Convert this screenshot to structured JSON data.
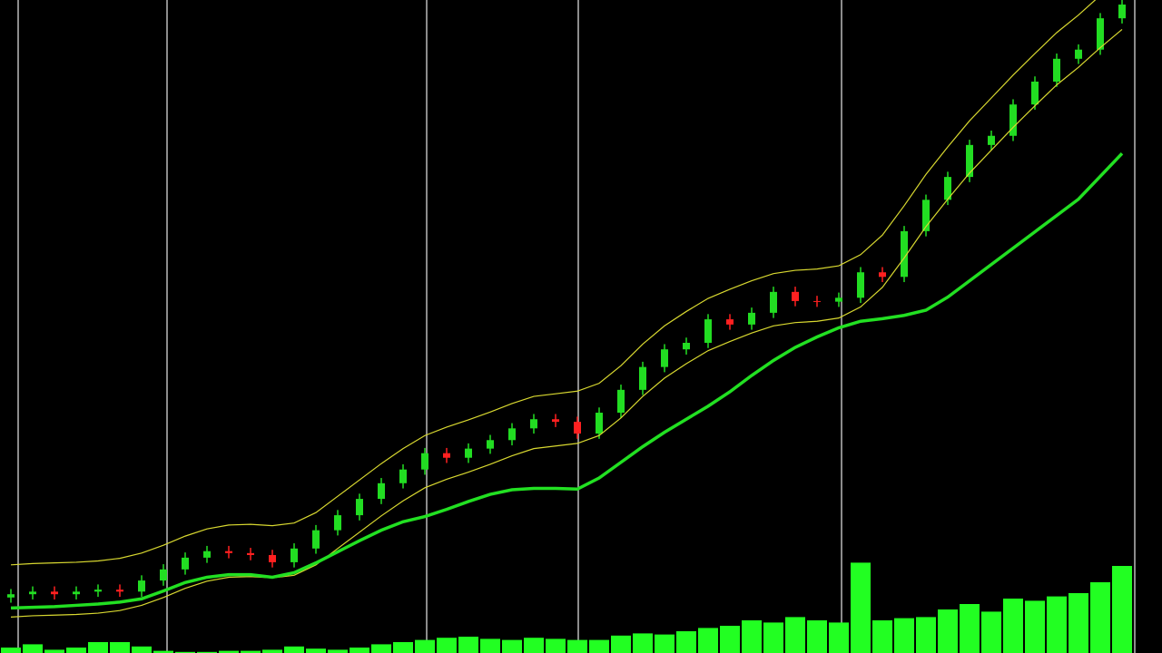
{
  "chart_data": {
    "type": "candlestick",
    "open": [
      8.5,
      9.0,
      9.4,
      9.0,
      9.4,
      9.7,
      9.4,
      11.1,
      12.8,
      14.6,
      15.6,
      15.3,
      15.0,
      13.9,
      16.0,
      18.8,
      21.1,
      23.6,
      26.0,
      28.1,
      30.6,
      29.9,
      31.3,
      32.6,
      34.4,
      35.8,
      35.4,
      33.6,
      36.8,
      40.3,
      43.8,
      46.5,
      47.5,
      51.1,
      50.3,
      52.1,
      55.3,
      53.9,
      53.8,
      54.4,
      58.3,
      57.6,
      64.6,
      69.4,
      72.9,
      77.8,
      79.2,
      84.0,
      87.5,
      91.0,
      92.4,
      97.2
    ],
    "high": [
      9.8,
      10.2,
      10.2,
      10.2,
      10.5,
      10.5,
      11.9,
      13.6,
      15.4,
      16.4,
      16.4,
      16.1,
      15.8,
      16.8,
      19.6,
      21.9,
      24.4,
      26.8,
      28.9,
      31.4,
      31.4,
      32.1,
      33.4,
      35.2,
      36.6,
      36.6,
      36.2,
      37.6,
      41.1,
      44.6,
      47.3,
      48.3,
      51.9,
      51.9,
      52.9,
      56.1,
      56.1,
      54.7,
      55.2,
      59.1,
      59.1,
      65.4,
      70.2,
      73.7,
      78.6,
      80.0,
      84.8,
      88.3,
      91.8,
      93.2,
      98.0,
      100.0
    ],
    "low": [
      7.7,
      8.2,
      8.2,
      8.2,
      8.6,
      8.6,
      8.6,
      10.3,
      12.0,
      13.8,
      14.5,
      14.2,
      13.1,
      13.1,
      15.2,
      18.0,
      20.3,
      22.8,
      25.2,
      27.3,
      29.1,
      29.1,
      30.5,
      31.8,
      33.6,
      34.6,
      32.8,
      32.8,
      36.0,
      39.5,
      43.0,
      45.7,
      46.7,
      49.5,
      49.5,
      51.3,
      53.1,
      53.0,
      53.0,
      53.6,
      56.8,
      56.8,
      63.8,
      68.6,
      72.1,
      77.0,
      78.4,
      83.2,
      86.7,
      90.2,
      91.6,
      96.4
    ],
    "close": [
      9.0,
      9.4,
      9.0,
      9.4,
      9.7,
      9.4,
      11.1,
      12.8,
      14.6,
      15.6,
      15.3,
      15.0,
      13.9,
      16.0,
      18.8,
      21.1,
      23.6,
      26.0,
      28.1,
      30.6,
      29.9,
      31.3,
      32.6,
      34.4,
      35.8,
      35.4,
      33.6,
      36.8,
      40.3,
      43.8,
      46.5,
      47.5,
      51.1,
      50.3,
      52.1,
      55.3,
      53.9,
      53.8,
      54.4,
      58.3,
      57.6,
      64.6,
      69.4,
      72.9,
      77.8,
      79.2,
      84.0,
      87.5,
      91.0,
      92.4,
      97.2,
      99.3
    ],
    "up_color": "#22dd22",
    "down_color": "#ff2020",
    "bands": [
      {
        "color": "#d8d830",
        "width": 1.2,
        "values": [
          13.5,
          13.7,
          13.8,
          13.9,
          14.1,
          14.5,
          15.3,
          16.5,
          17.9,
          19.0,
          19.6,
          19.7,
          19.5,
          19.9,
          21.5,
          24.0,
          26.5,
          29.0,
          31.3,
          33.3,
          34.6,
          35.7,
          36.9,
          38.2,
          39.3,
          39.7,
          40.1,
          41.3,
          44.0,
          47.3,
          50.1,
          52.3,
          54.3,
          55.7,
          57.0,
          58.1,
          58.6,
          58.8,
          59.3,
          61.0,
          64.0,
          68.5,
          73.3,
          77.5,
          81.5,
          85.0,
          88.5,
          91.8,
          95.0,
          97.7,
          100.7,
          103.5
        ]
      },
      {
        "color": "#d8d830",
        "width": 1.2,
        "values": [
          5.5,
          5.7,
          5.8,
          5.9,
          6.1,
          6.5,
          7.3,
          8.5,
          9.9,
          11.0,
          11.6,
          11.7,
          11.5,
          11.9,
          13.5,
          16.0,
          18.5,
          21.0,
          23.3,
          25.3,
          26.6,
          27.7,
          28.9,
          30.2,
          31.3,
          31.7,
          32.1,
          33.3,
          36.0,
          39.3,
          42.1,
          44.3,
          46.3,
          47.7,
          49.0,
          50.1,
          50.6,
          50.8,
          51.3,
          53.0,
          56.0,
          60.5,
          65.3,
          69.5,
          73.5,
          77.0,
          80.5,
          83.8,
          87.0,
          89.7,
          92.7,
          95.5
        ]
      },
      {
        "color": "#22e022",
        "width": 3.5,
        "values": [
          6.9,
          7.0,
          7.1,
          7.3,
          7.5,
          7.8,
          8.3,
          9.5,
          10.8,
          11.6,
          12.0,
          12.0,
          11.6,
          12.3,
          13.8,
          15.5,
          17.2,
          18.8,
          20.1,
          20.9,
          22.0,
          23.2,
          24.3,
          25.0,
          25.2,
          25.2,
          25.1,
          26.8,
          29.2,
          31.6,
          33.8,
          35.8,
          37.8,
          40.0,
          42.5,
          44.8,
          46.8,
          48.4,
          49.8,
          50.8,
          51.2,
          51.7,
          52.5,
          54.5,
          57.0,
          59.5,
          62.0,
          64.5,
          67.0,
          69.5,
          73.0,
          76.5
        ]
      }
    ],
    "ylim": [
      0,
      100
    ],
    "volume": {
      "color": "#22ff22",
      "ylim": [
        0,
        100
      ],
      "values": [
        5,
        8,
        3,
        5,
        10,
        10,
        6,
        2,
        1,
        1,
        2,
        2,
        3,
        6,
        4,
        3,
        5,
        8,
        10,
        12,
        14,
        15,
        13,
        12,
        14,
        13,
        12,
        12,
        16,
        18,
        17,
        20,
        23,
        25,
        30,
        28,
        33,
        30,
        28,
        83,
        30,
        32,
        33,
        40,
        45,
        38,
        50,
        48,
        52,
        55,
        65,
        80
      ]
    }
  }
}
